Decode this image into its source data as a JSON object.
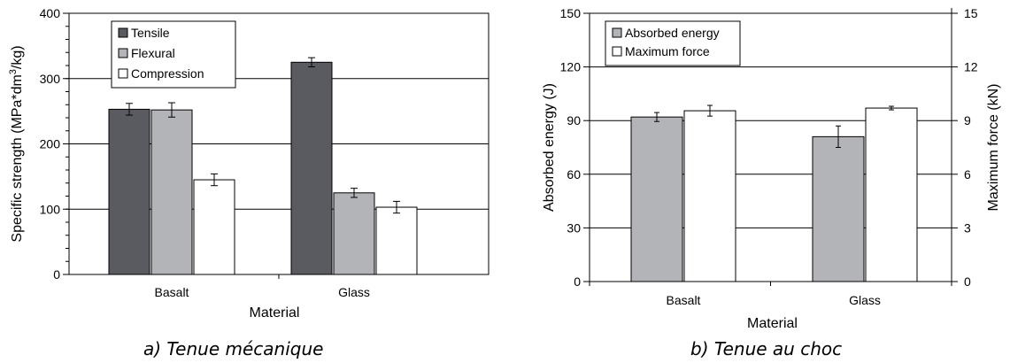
{
  "chart_data": [
    {
      "type": "bar",
      "caption": "a) Tenue mécanique",
      "xlabel": "Material",
      "ylabel_prefix": "Specific strength (MPa*dm",
      "ylabel_sup": "3",
      "ylabel_suffix": "/kg)",
      "ylim": [
        0,
        400
      ],
      "yticks": [
        0,
        100,
        200,
        300,
        400
      ],
      "grid": true,
      "legend_placement": "top-center",
      "categories": [
        "Basalt",
        "Glass"
      ],
      "series": [
        {
          "name": "Tensile",
          "color": "#5a5b61",
          "values": [
            253,
            325
          ],
          "errors": [
            9,
            7
          ]
        },
        {
          "name": "Flexural",
          "color": "#b3b4b8",
          "values": [
            252,
            125
          ],
          "errors": [
            11,
            7
          ]
        },
        {
          "name": "Compression",
          "color": "#ffffff",
          "values": [
            145,
            103
          ],
          "errors": [
            9,
            9
          ]
        }
      ]
    },
    {
      "type": "bar",
      "caption": "b) Tenue au choc",
      "xlabel": "Material",
      "ylabel_left": "Absorbed energy (J)",
      "ylabel_right": "Maximum force (kN)",
      "ylim_left": [
        0,
        150
      ],
      "ylim_right": [
        0,
        15
      ],
      "yticks_left": [
        0,
        30,
        60,
        90,
        120,
        150
      ],
      "yticks_right": [
        0,
        3,
        6,
        9,
        12,
        15
      ],
      "grid": true,
      "legend_placement": "top-left",
      "categories": [
        "Basalt",
        "Glass"
      ],
      "series": [
        {
          "name": "Absorbed energy",
          "axis": "left",
          "color": "#b3b4b8",
          "values": [
            92,
            81
          ],
          "errors": [
            2.5,
            6
          ]
        },
        {
          "name": "Maximum force",
          "axis": "right",
          "color": "#ffffff",
          "values": [
            9.55,
            9.7
          ],
          "errors": [
            0.3,
            0.1
          ]
        }
      ]
    }
  ]
}
